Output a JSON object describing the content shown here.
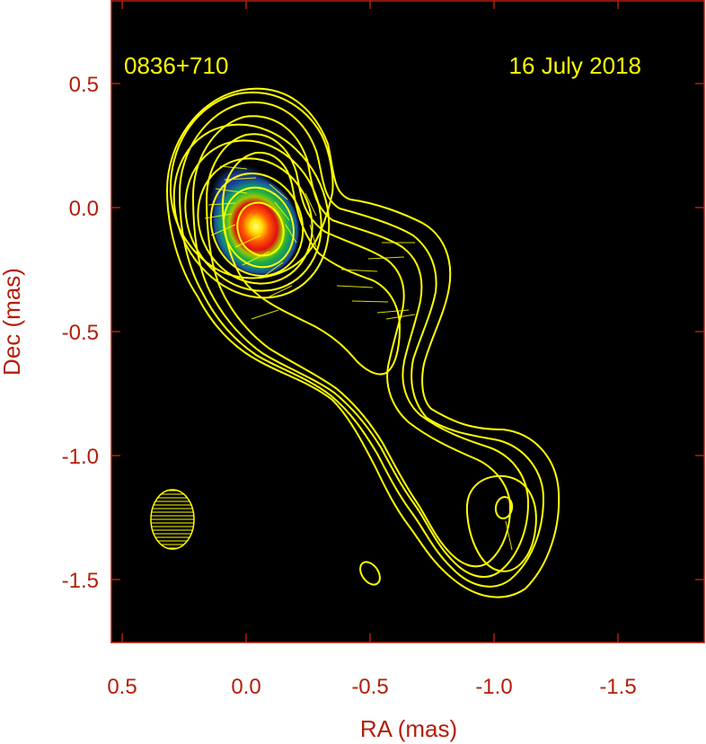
{
  "chart_data": {
    "type": "contour",
    "source_label": "0836+710",
    "date_label": "16 July 2018",
    "xlabel": "RA (mas)",
    "ylabel": "Dec (mas)",
    "xlim": [
      0.55,
      -1.85
    ],
    "ylim": [
      -1.75,
      0.8
    ],
    "x_axis_reversed": true,
    "xticks": [
      0.5,
      0.0,
      -0.5,
      -1.0,
      -1.5
    ],
    "xtick_labels": [
      "0.5",
      "0.0",
      "-0.5",
      "-1.0",
      "-1.5"
    ],
    "yticks": [
      0.5,
      0.0,
      -0.5,
      -1.0,
      -1.5
    ],
    "ytick_labels": [
      "0.5",
      "0.0",
      "-0.5",
      "-1.0",
      "-1.5"
    ],
    "grid": false,
    "core_peak": [
      -0.05,
      -0.1
    ],
    "secondary_component": [
      -1.03,
      -1.22
    ],
    "beam": {
      "center": [
        0.3,
        -1.25
      ],
      "major_mas": 0.3,
      "minor_mas": 0.17,
      "pa_deg": 0
    },
    "colors": {
      "background": "#000000",
      "contour": "#ffff00",
      "axis": "#b41e0a",
      "annotation": "#ffff00"
    }
  }
}
